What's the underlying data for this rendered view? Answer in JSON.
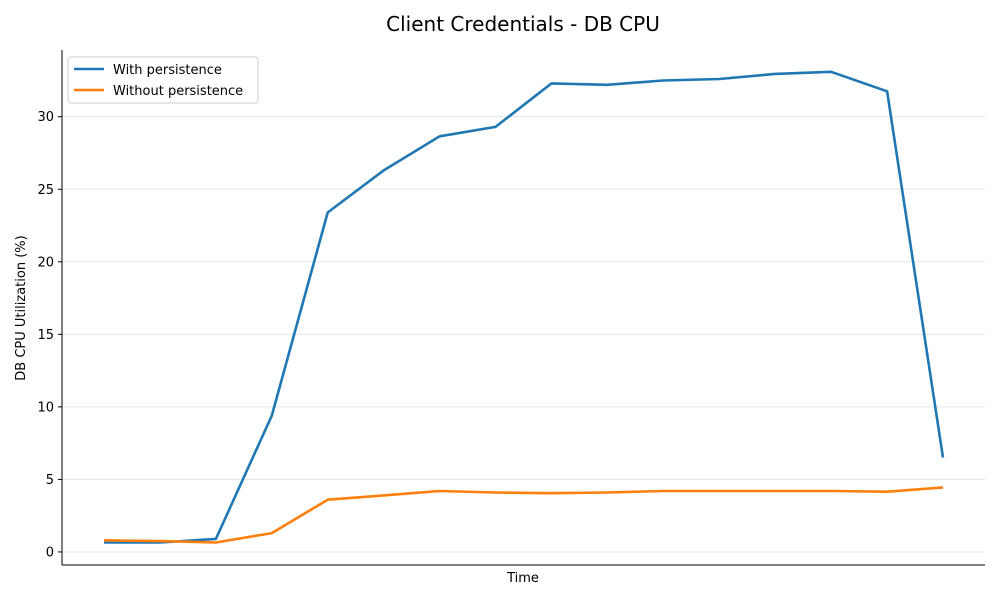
{
  "chart_data": {
    "type": "line",
    "title": "Client Credentials - DB CPU",
    "xlabel": "Time",
    "ylabel": "DB CPU Utilization (%)",
    "ylim": [
      -0.9,
      34.6
    ],
    "yticks": [
      0,
      5,
      10,
      15,
      20,
      25,
      30
    ],
    "grid": "horizontal",
    "legend_position": "top-left",
    "x": [
      0,
      1,
      2,
      3,
      4,
      5,
      6,
      7,
      8,
      9,
      10,
      11,
      12,
      13,
      14,
      15
    ],
    "series": [
      {
        "name": "With persistence",
        "color": "#1f77b4",
        "values": [
          0.65,
          0.65,
          0.9,
          9.4,
          23.4,
          26.3,
          28.65,
          29.3,
          32.3,
          32.2,
          32.5,
          32.6,
          32.95,
          33.1,
          31.75,
          6.5
        ]
      },
      {
        "name": "Without persistence",
        "color": "#ff7f0e",
        "values": [
          0.8,
          0.75,
          0.65,
          1.3,
          3.6,
          3.9,
          4.2,
          4.1,
          4.05,
          4.1,
          4.2,
          4.2,
          4.2,
          4.2,
          4.15,
          4.45
        ]
      }
    ]
  }
}
